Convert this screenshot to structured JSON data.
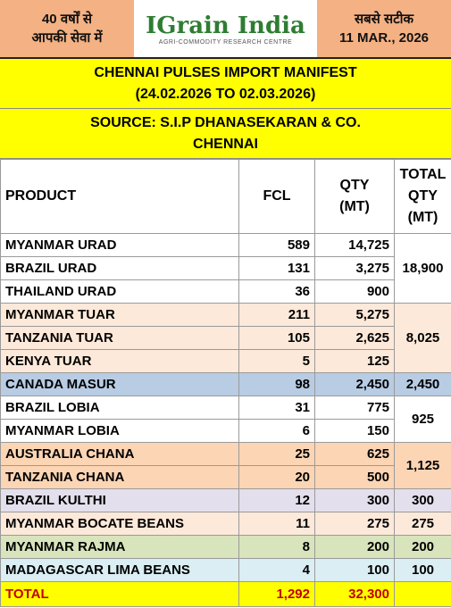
{
  "header": {
    "left_lines": [
      "40 वर्षों से",
      "आपकी सेवा में"
    ],
    "logo": "IGrain India",
    "logo_subtitle": "AGRI-COMMODITY RESEARCH CENTRE",
    "right_lines": [
      "सबसे सटीक",
      "11 MAR., 2026"
    ]
  },
  "title_lines": [
    "CHENNAI PULSES IMPORT MANIFEST",
    "(24.02.2026 TO 02.03.2026)"
  ],
  "source_lines": [
    "SOURCE: S.I.P DHANASEKARAN & CO.",
    "CHENNAI"
  ],
  "table": {
    "columns": [
      [
        "PRODUCT"
      ],
      [
        "FCL"
      ],
      [
        "QTY",
        "(MT)"
      ],
      [
        "TOTAL",
        "QTY",
        "(MT)"
      ]
    ],
    "groups": [
      {
        "color": "#ffffff",
        "rows": [
          [
            "MYANMAR URAD",
            "589",
            "14,725"
          ],
          [
            "BRAZIL URAD",
            "131",
            "3,275"
          ],
          [
            "THAILAND URAD",
            "36",
            "900"
          ]
        ],
        "total": "18,900"
      },
      {
        "color": "#fde9d9",
        "rows": [
          [
            "MYANMAR TUAR",
            "211",
            "5,275"
          ],
          [
            "TANZANIA TUAR",
            "105",
            "2,625"
          ],
          [
            "KENYA TUAR",
            "5",
            "125"
          ]
        ],
        "total": "8,025"
      },
      {
        "color": "#b8cce4",
        "rows": [
          [
            "CANADA MASUR",
            "98",
            "2,450"
          ]
        ],
        "total": "2,450"
      },
      {
        "color": "#ffffff",
        "rows": [
          [
            "BRAZIL LOBIA",
            "31",
            "775"
          ],
          [
            "MYANMAR LOBIA",
            "6",
            "150"
          ]
        ],
        "total": "925"
      },
      {
        "color": "#fcd5b4",
        "rows": [
          [
            "AUSTRALIA CHANA",
            "25",
            "625"
          ],
          [
            "TANZANIA CHANA",
            "20",
            "500"
          ]
        ],
        "total": "1,125"
      },
      {
        "color": "#e4dfec",
        "rows": [
          [
            "BRAZIL KULTHI",
            "12",
            "300"
          ]
        ],
        "total": "300"
      },
      {
        "color": "#fde9d9",
        "rows": [
          [
            "MYANMAR BOCATE BEANS",
            "11",
            "275"
          ]
        ],
        "total": "275"
      },
      {
        "color": "#d8e4bc",
        "rows": [
          [
            "MYANMAR RAJMA",
            "8",
            "200"
          ]
        ],
        "total": "200"
      },
      {
        "color": "#daeef3",
        "rows": [
          [
            "MADAGASCAR LIMA BEANS",
            "4",
            "100"
          ]
        ],
        "total": "100"
      }
    ],
    "total_row": [
      "TOTAL",
      "1,292",
      "32,300"
    ]
  }
}
